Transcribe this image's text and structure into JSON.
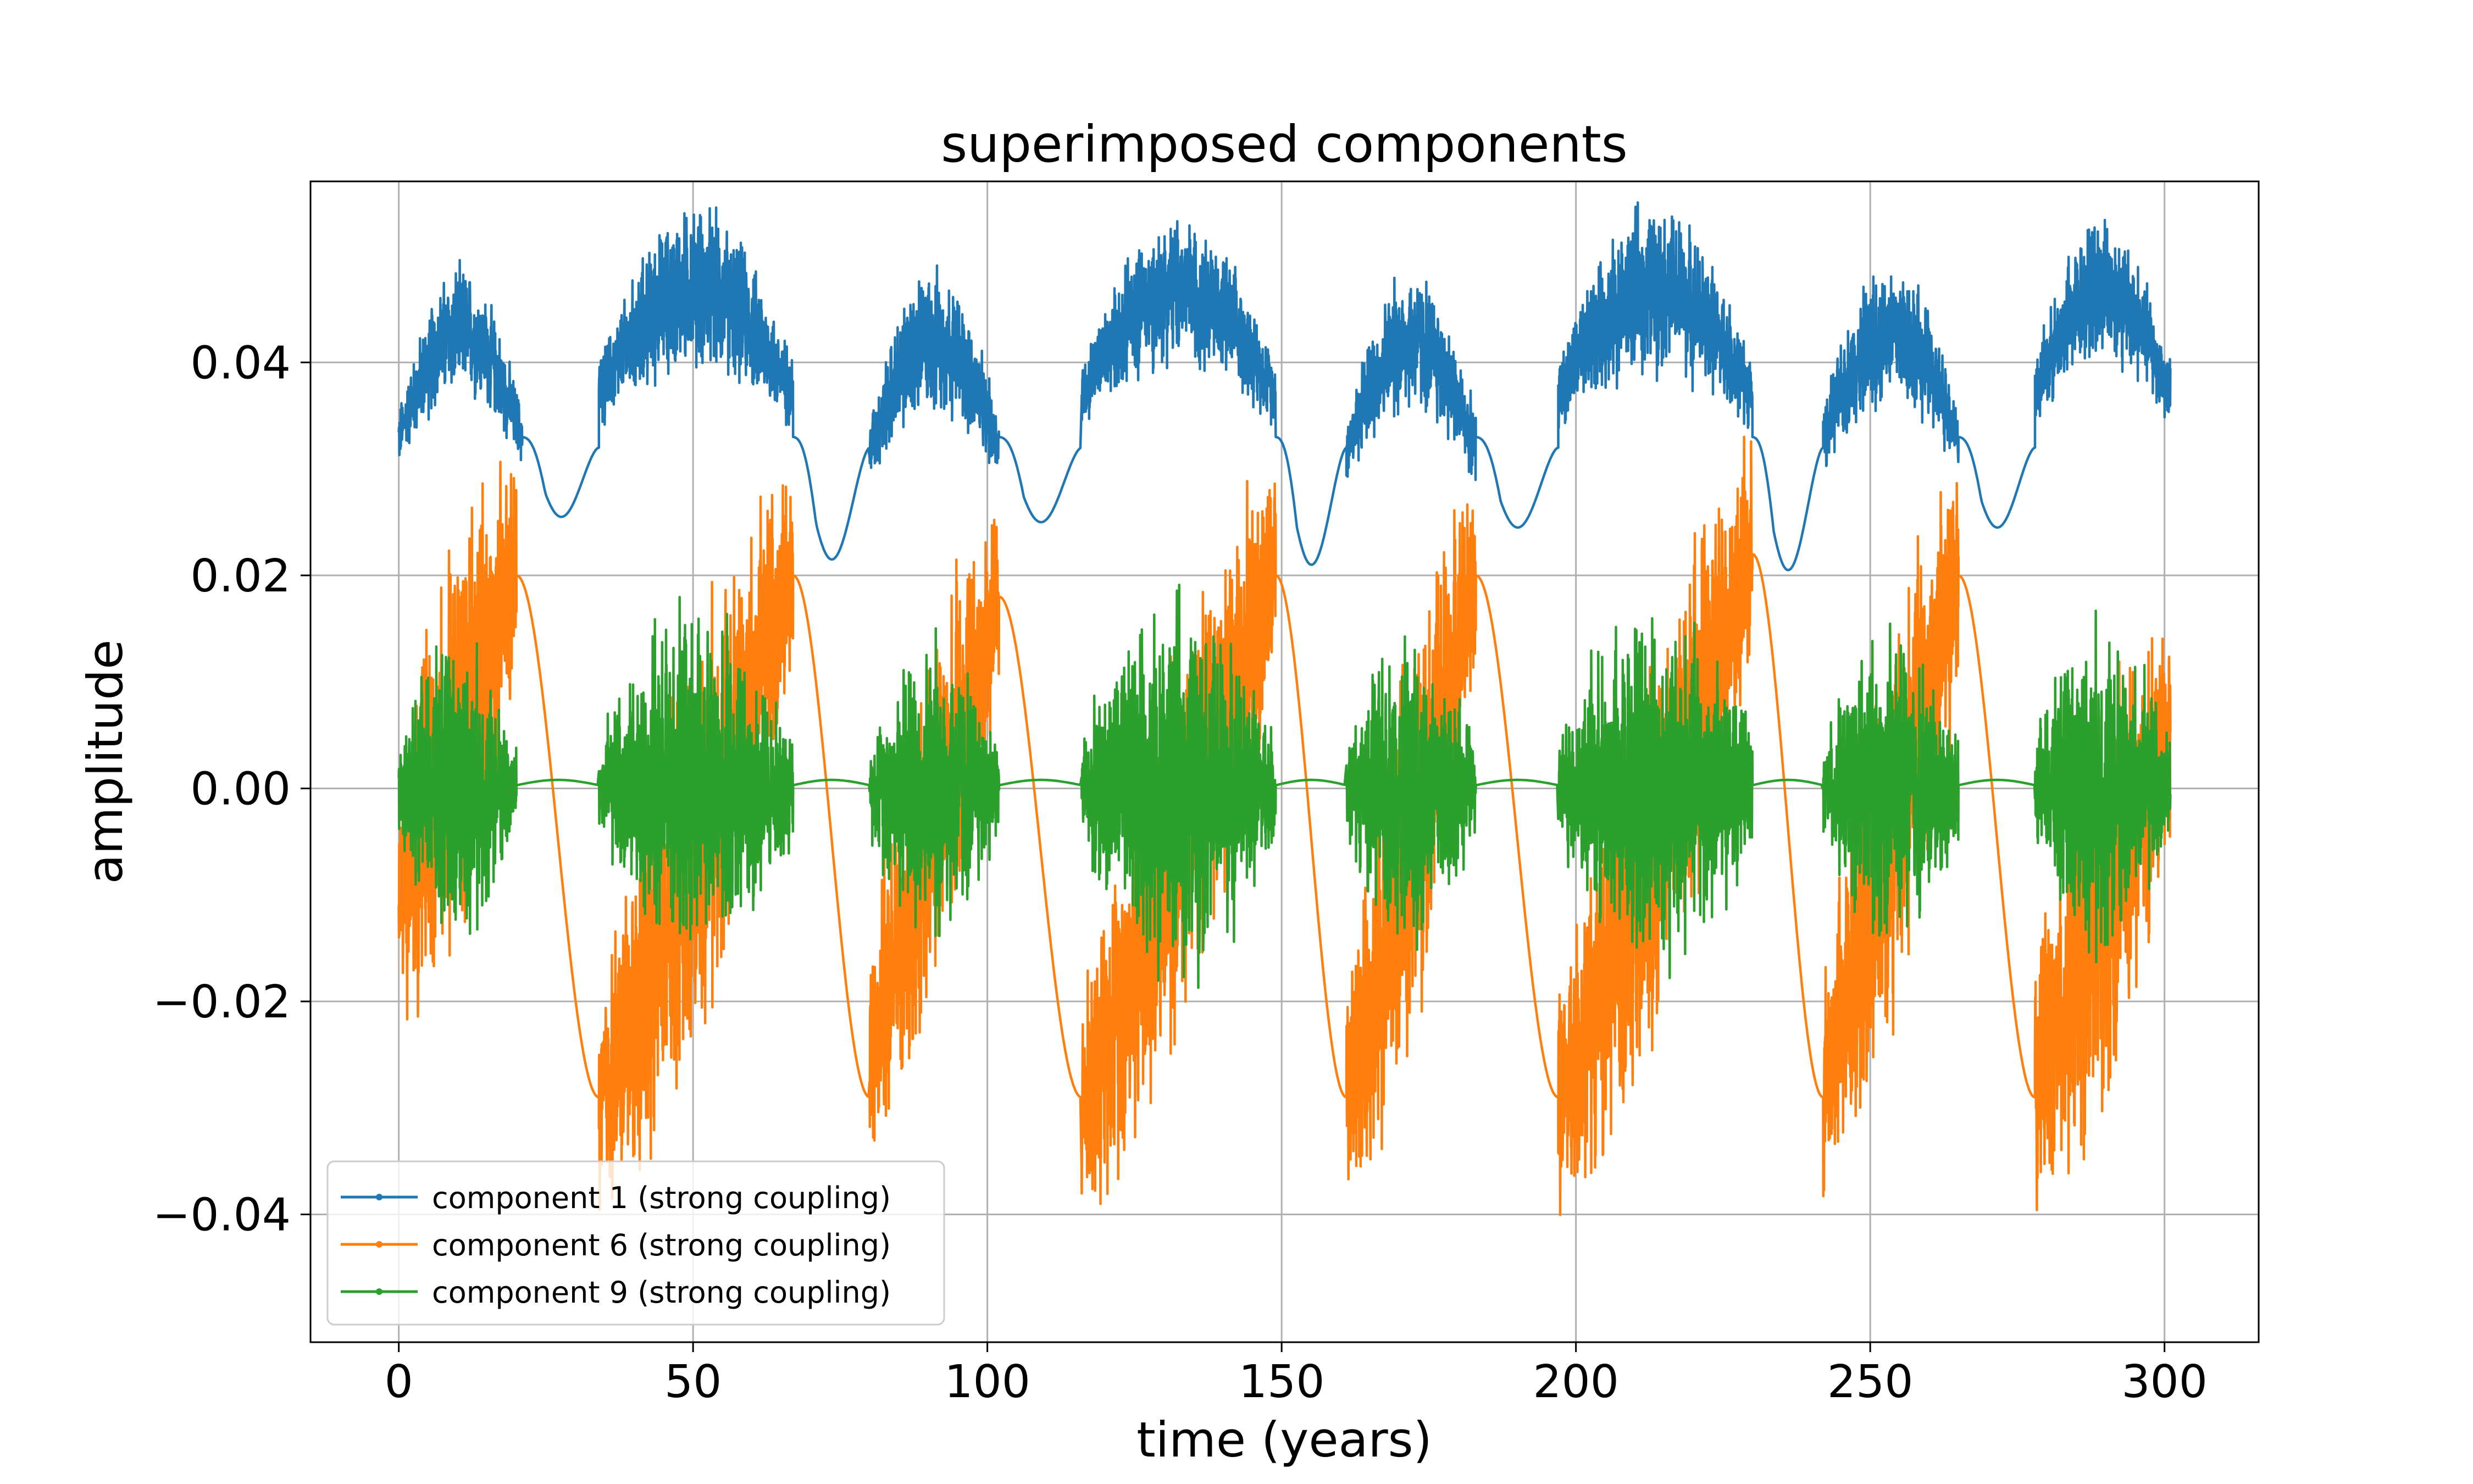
{
  "chart_data": {
    "type": "line",
    "title": "superimposed components",
    "xlabel": "time (years)",
    "ylabel": "amplitude",
    "xlim": [
      -15,
      316
    ],
    "ylim": [
      -0.052,
      0.057
    ],
    "grid": true,
    "legend_position": "lower-left",
    "x_ticks": [
      {
        "value": 0,
        "label": "0"
      },
      {
        "value": 50,
        "label": "50"
      },
      {
        "value": 100,
        "label": "100"
      },
      {
        "value": 150,
        "label": "150"
      },
      {
        "value": 200,
        "label": "200"
      },
      {
        "value": 250,
        "label": "250"
      },
      {
        "value": 300,
        "label": "300"
      }
    ],
    "y_ticks": [
      {
        "value": 0.04,
        "label": "0.04"
      },
      {
        "value": 0.02,
        "label": "0.02"
      },
      {
        "value": 0.0,
        "label": "0.00"
      },
      {
        "value": -0.02,
        "label": "−0.02"
      },
      {
        "value": -0.04,
        "label": "−0.04"
      }
    ],
    "series": [
      {
        "name": "component 1 (strong coupling)",
        "color": "#1f77b4",
        "cycles": [
          {
            "active": [
              0,
              21
            ],
            "center": 0.039,
            "amplitude": 0.007,
            "trough_x": 25,
            "trough_y": 0.026
          },
          {
            "active": [
              34,
              67
            ],
            "center": 0.043,
            "amplitude": 0.009,
            "trough_x": 73,
            "trough_y": 0.022
          },
          {
            "active": [
              80,
              102
            ],
            "center": 0.038,
            "amplitude": 0.008,
            "trough_x": 107,
            "trough_y": 0.0255
          },
          {
            "active": [
              116,
              149
            ],
            "center": 0.043,
            "amplitude": 0.008,
            "trough_x": 154,
            "trough_y": 0.0215
          },
          {
            "active": [
              161,
              183
            ],
            "center": 0.038,
            "amplitude": 0.008,
            "trough_x": 188,
            "trough_y": 0.025
          },
          {
            "active": [
              197,
              230
            ],
            "center": 0.043,
            "amplitude": 0.009,
            "trough_x": 235,
            "trough_y": 0.021
          },
          {
            "active": [
              242,
              265
            ],
            "center": 0.039,
            "amplitude": 0.008,
            "trough_x": 270,
            "trough_y": 0.025
          },
          {
            "active": [
              278,
              301
            ],
            "center": 0.043,
            "amplitude": 0.008
          }
        ]
      },
      {
        "name": "component 6 (strong coupling)",
        "color": "#ff7f0e",
        "cycles": [
          {
            "active": [
              0,
              20
            ],
            "start": -0.01,
            "end": 0.02,
            "amplitude": 0.022,
            "smooth_to_x": 34,
            "smooth_to_y": -0.029
          },
          {
            "active": [
              34,
              67
            ],
            "start": -0.03,
            "end": 0.02,
            "amplitude": 0.022,
            "smooth_to_x": 80,
            "smooth_to_y": -0.029
          },
          {
            "active": [
              80,
              102
            ],
            "start": -0.025,
            "end": 0.018,
            "amplitude": 0.02,
            "smooth_to_x": 116,
            "smooth_to_y": -0.029
          },
          {
            "active": [
              116,
              149
            ],
            "start": -0.03,
            "end": 0.02,
            "amplitude": 0.022,
            "smooth_to_x": 161,
            "smooth_to_y": -0.029
          },
          {
            "active": [
              161,
              183
            ],
            "start": -0.03,
            "end": 0.02,
            "amplitude": 0.021,
            "smooth_to_x": 197,
            "smooth_to_y": -0.029
          },
          {
            "active": [
              197,
              230
            ],
            "start": -0.03,
            "end": 0.022,
            "amplitude": 0.022,
            "smooth_to_x": 242,
            "smooth_to_y": -0.029
          },
          {
            "active": [
              242,
              265
            ],
            "start": -0.028,
            "end": 0.02,
            "amplitude": 0.022,
            "smooth_to_x": 278,
            "smooth_to_y": -0.029
          },
          {
            "active": [
              278,
              301
            ],
            "start": -0.028,
            "end": 0.005,
            "amplitude": 0.022
          }
        ]
      },
      {
        "name": "component 9 (strong coupling)",
        "color": "#2ca02c",
        "cycles": [
          {
            "active": [
              0,
              20
            ],
            "center": 0.0,
            "amplitude": 0.016
          },
          {
            "active": [
              34,
              67
            ],
            "center": 0.0,
            "amplitude": 0.019
          },
          {
            "active": [
              80,
              102
            ],
            "center": 0.0,
            "amplitude": 0.017
          },
          {
            "active": [
              116,
              149
            ],
            "center": 0.0,
            "amplitude": 0.02
          },
          {
            "active": [
              161,
              183
            ],
            "center": 0.0,
            "amplitude": 0.017
          },
          {
            "active": [
              197,
              230
            ],
            "center": 0.0,
            "amplitude": 0.02
          },
          {
            "active": [
              242,
              265
            ],
            "center": 0.0,
            "amplitude": 0.017
          },
          {
            "active": [
              278,
              301
            ],
            "center": 0.0,
            "amplitude": 0.018
          }
        ]
      }
    ]
  }
}
